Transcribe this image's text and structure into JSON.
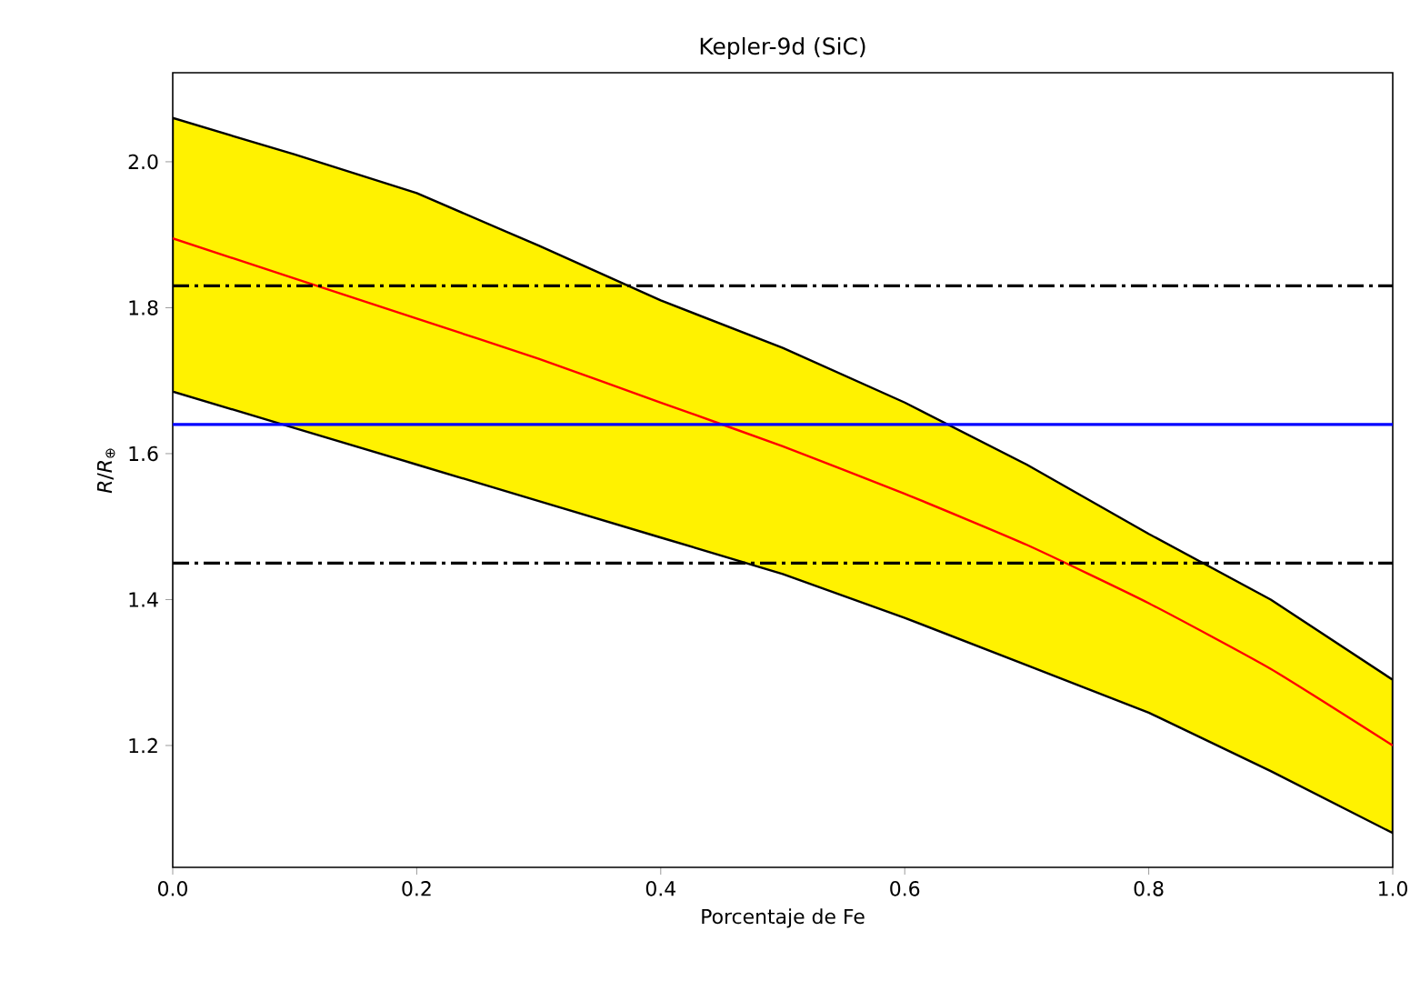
{
  "chart_data": {
    "type": "line",
    "title": "Kepler-9d (SiC)",
    "xlabel": "Porcentaje de Fe",
    "ylabel": "*R*/*R*$_{⊕}$",
    "x": [
      0,
      0.1,
      0.2,
      0.3,
      0.4,
      0.5,
      0.6,
      0.7,
      0.8,
      0.9,
      1.0
    ],
    "series": [
      {
        "color": "#ff0000",
        "values": [
          1.895,
          1.84,
          1.785,
          1.73,
          1.67,
          1.61,
          1.545,
          1.475,
          1.395,
          1.305,
          1.2
        ],
        "lower": [
          1.685,
          1.635,
          1.585,
          1.535,
          1.485,
          1.435,
          1.375,
          1.31,
          1.245,
          1.165,
          1.08
        ],
        "upper": [
          2.06,
          2.01,
          1.957,
          1.885,
          1.81,
          1.745,
          1.67,
          1.585,
          1.49,
          1.4,
          1.29
        ]
      }
    ],
    "ref_lines": [
      {
        "axis": "y",
        "value": 1.83,
        "color": "#000000",
        "line_style": "dashdot"
      },
      {
        "axis": "y",
        "value": 1.64,
        "color": "#0000ff",
        "line_style": "solid"
      },
      {
        "axis": "y",
        "value": 1.45,
        "color": "#000000",
        "line_style": "dashdot"
      }
    ],
    "xlim": [
      0,
      1
    ],
    "ylim": [
      1.033,
      2.122
    ],
    "xticks": [
      {
        "value": 0,
        "label": "0.0"
      },
      0.2,
      0.4,
      0.6,
      0.8,
      {
        "value": 1,
        "label": "1.0"
      }
    ],
    "yticks": [
      1.2,
      1.4,
      1.6,
      1.8,
      {
        "value": 2,
        "label": "2.0"
      }
    ],
    "marker": "none",
    "line_style": "solid"
  }
}
